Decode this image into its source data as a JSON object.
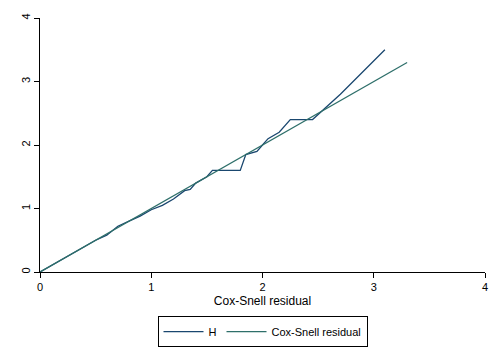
{
  "chart_data": {
    "type": "line",
    "x_label": "Cox-Snell residual",
    "xlim": [
      0,
      4
    ],
    "xticks": [
      0,
      1,
      2,
      3,
      4
    ],
    "ylim": [
      0,
      4
    ],
    "yticks": [
      0,
      1,
      2,
      3,
      4
    ],
    "grid": false,
    "legend": "bottom",
    "series": [
      {
        "name": "H",
        "color": "#1a476f",
        "line_style": "solid",
        "x": [
          0,
          0.2,
          0.4,
          0.5,
          0.6,
          0.7,
          0.8,
          0.9,
          1.0,
          1.1,
          1.2,
          1.3,
          1.35,
          1.4,
          1.5,
          1.55,
          1.7,
          1.8,
          1.85,
          1.95,
          2.0,
          2.05,
          2.15,
          2.25,
          2.45,
          2.7,
          3.1
        ],
        "values": [
          0,
          0.2,
          0.4,
          0.5,
          0.58,
          0.72,
          0.8,
          0.88,
          0.98,
          1.05,
          1.15,
          1.28,
          1.3,
          1.4,
          1.5,
          1.6,
          1.6,
          1.6,
          1.85,
          1.9,
          2.0,
          2.1,
          2.2,
          2.4,
          2.4,
          2.8,
          3.5
        ]
      },
      {
        "name": "Cox-Snell residual",
        "color": "#2e6f6a",
        "line_style": "solid",
        "x": [
          0,
          3.3
        ],
        "values": [
          0,
          3.3
        ]
      }
    ]
  }
}
